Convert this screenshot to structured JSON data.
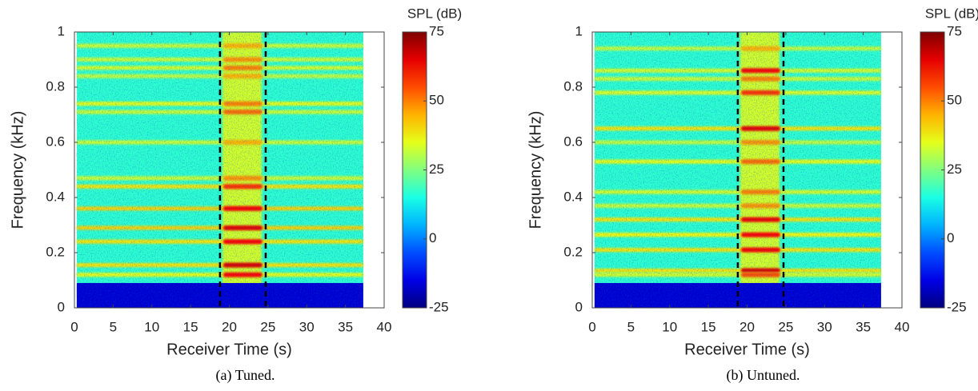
{
  "chart_data": [
    {
      "type": "spectrogram",
      "caption": "(a) Tuned.",
      "xlabel": "Receiver Time (s)",
      "ylabel": "Frequency (kHz)",
      "colorbar_label": "SPL (dB)",
      "colormap": "jet",
      "xlim": [
        0,
        40
      ],
      "xticks": [
        0,
        5,
        10,
        15,
        20,
        25,
        30,
        35,
        40
      ],
      "ylim": [
        0,
        1
      ],
      "yticks": [
        0,
        0.2,
        0.4,
        0.6,
        0.8,
        1
      ],
      "clim": [
        -25,
        75
      ],
      "cticks": [
        -25,
        0,
        25,
        50,
        75
      ],
      "time_extent": [
        0.3,
        37.3
      ],
      "background_level": 17,
      "noise_floor": {
        "freq_max": 0.09,
        "level": -17
      },
      "passage_times": [
        18.8,
        24.7
      ],
      "passage_level": 36,
      "tones": [
        {
          "freq": 0.95,
          "level": 33,
          "peak_level": 45
        },
        {
          "freq": 0.9,
          "level": 33,
          "peak_level": 48
        },
        {
          "freq": 0.87,
          "level": 34,
          "peak_level": 50
        },
        {
          "freq": 0.84,
          "level": 32,
          "peak_level": 45
        },
        {
          "freq": 0.74,
          "level": 36,
          "peak_level": 50
        },
        {
          "freq": 0.71,
          "level": 33,
          "peak_level": 52
        },
        {
          "freq": 0.6,
          "level": 33,
          "peak_level": 45
        },
        {
          "freq": 0.47,
          "level": 33,
          "peak_level": 48
        },
        {
          "freq": 0.44,
          "level": 40,
          "peak_level": 58
        },
        {
          "freq": 0.36,
          "level": 42,
          "peak_level": 63
        },
        {
          "freq": 0.29,
          "level": 42,
          "peak_level": 65
        },
        {
          "freq": 0.24,
          "level": 40,
          "peak_level": 62
        },
        {
          "freq": 0.155,
          "level": 40,
          "peak_level": 66
        },
        {
          "freq": 0.12,
          "level": 36,
          "peak_level": 62
        }
      ]
    },
    {
      "type": "spectrogram",
      "caption": "(b) Untuned.",
      "xlabel": "Receiver Time (s)",
      "ylabel": "Frequency (kHz)",
      "colorbar_label": "SPL (dB)",
      "colormap": "jet",
      "xlim": [
        0,
        40
      ],
      "xticks": [
        0,
        5,
        10,
        15,
        20,
        25,
        30,
        35,
        40
      ],
      "ylim": [
        0,
        1
      ],
      "yticks": [
        0,
        0.2,
        0.4,
        0.6,
        0.8,
        1
      ],
      "clim": [
        -25,
        75
      ],
      "cticks": [
        -25,
        0,
        25,
        50,
        75
      ],
      "time_extent": [
        0.3,
        37.3
      ],
      "background_level": 17,
      "noise_floor": {
        "freq_max": 0.09,
        "level": -17
      },
      "passage_times": [
        18.8,
        24.7
      ],
      "passage_level": 36,
      "tones": [
        {
          "freq": 0.94,
          "level": 32,
          "peak_level": 45
        },
        {
          "freq": 0.86,
          "level": 34,
          "peak_level": 62
        },
        {
          "freq": 0.83,
          "level": 33,
          "peak_level": 50
        },
        {
          "freq": 0.78,
          "level": 35,
          "peak_level": 58
        },
        {
          "freq": 0.65,
          "level": 40,
          "peak_level": 65
        },
        {
          "freq": 0.6,
          "level": 32,
          "peak_level": 48
        },
        {
          "freq": 0.53,
          "level": 36,
          "peak_level": 52
        },
        {
          "freq": 0.42,
          "level": 34,
          "peak_level": 50
        },
        {
          "freq": 0.37,
          "level": 33,
          "peak_level": 48
        },
        {
          "freq": 0.32,
          "level": 40,
          "peak_level": 64
        },
        {
          "freq": 0.265,
          "level": 38,
          "peak_level": 62
        },
        {
          "freq": 0.21,
          "level": 40,
          "peak_level": 63
        },
        {
          "freq": 0.135,
          "level": 40,
          "peak_level": 66
        },
        {
          "freq": 0.12,
          "level": 34,
          "peak_level": 55
        }
      ]
    }
  ]
}
